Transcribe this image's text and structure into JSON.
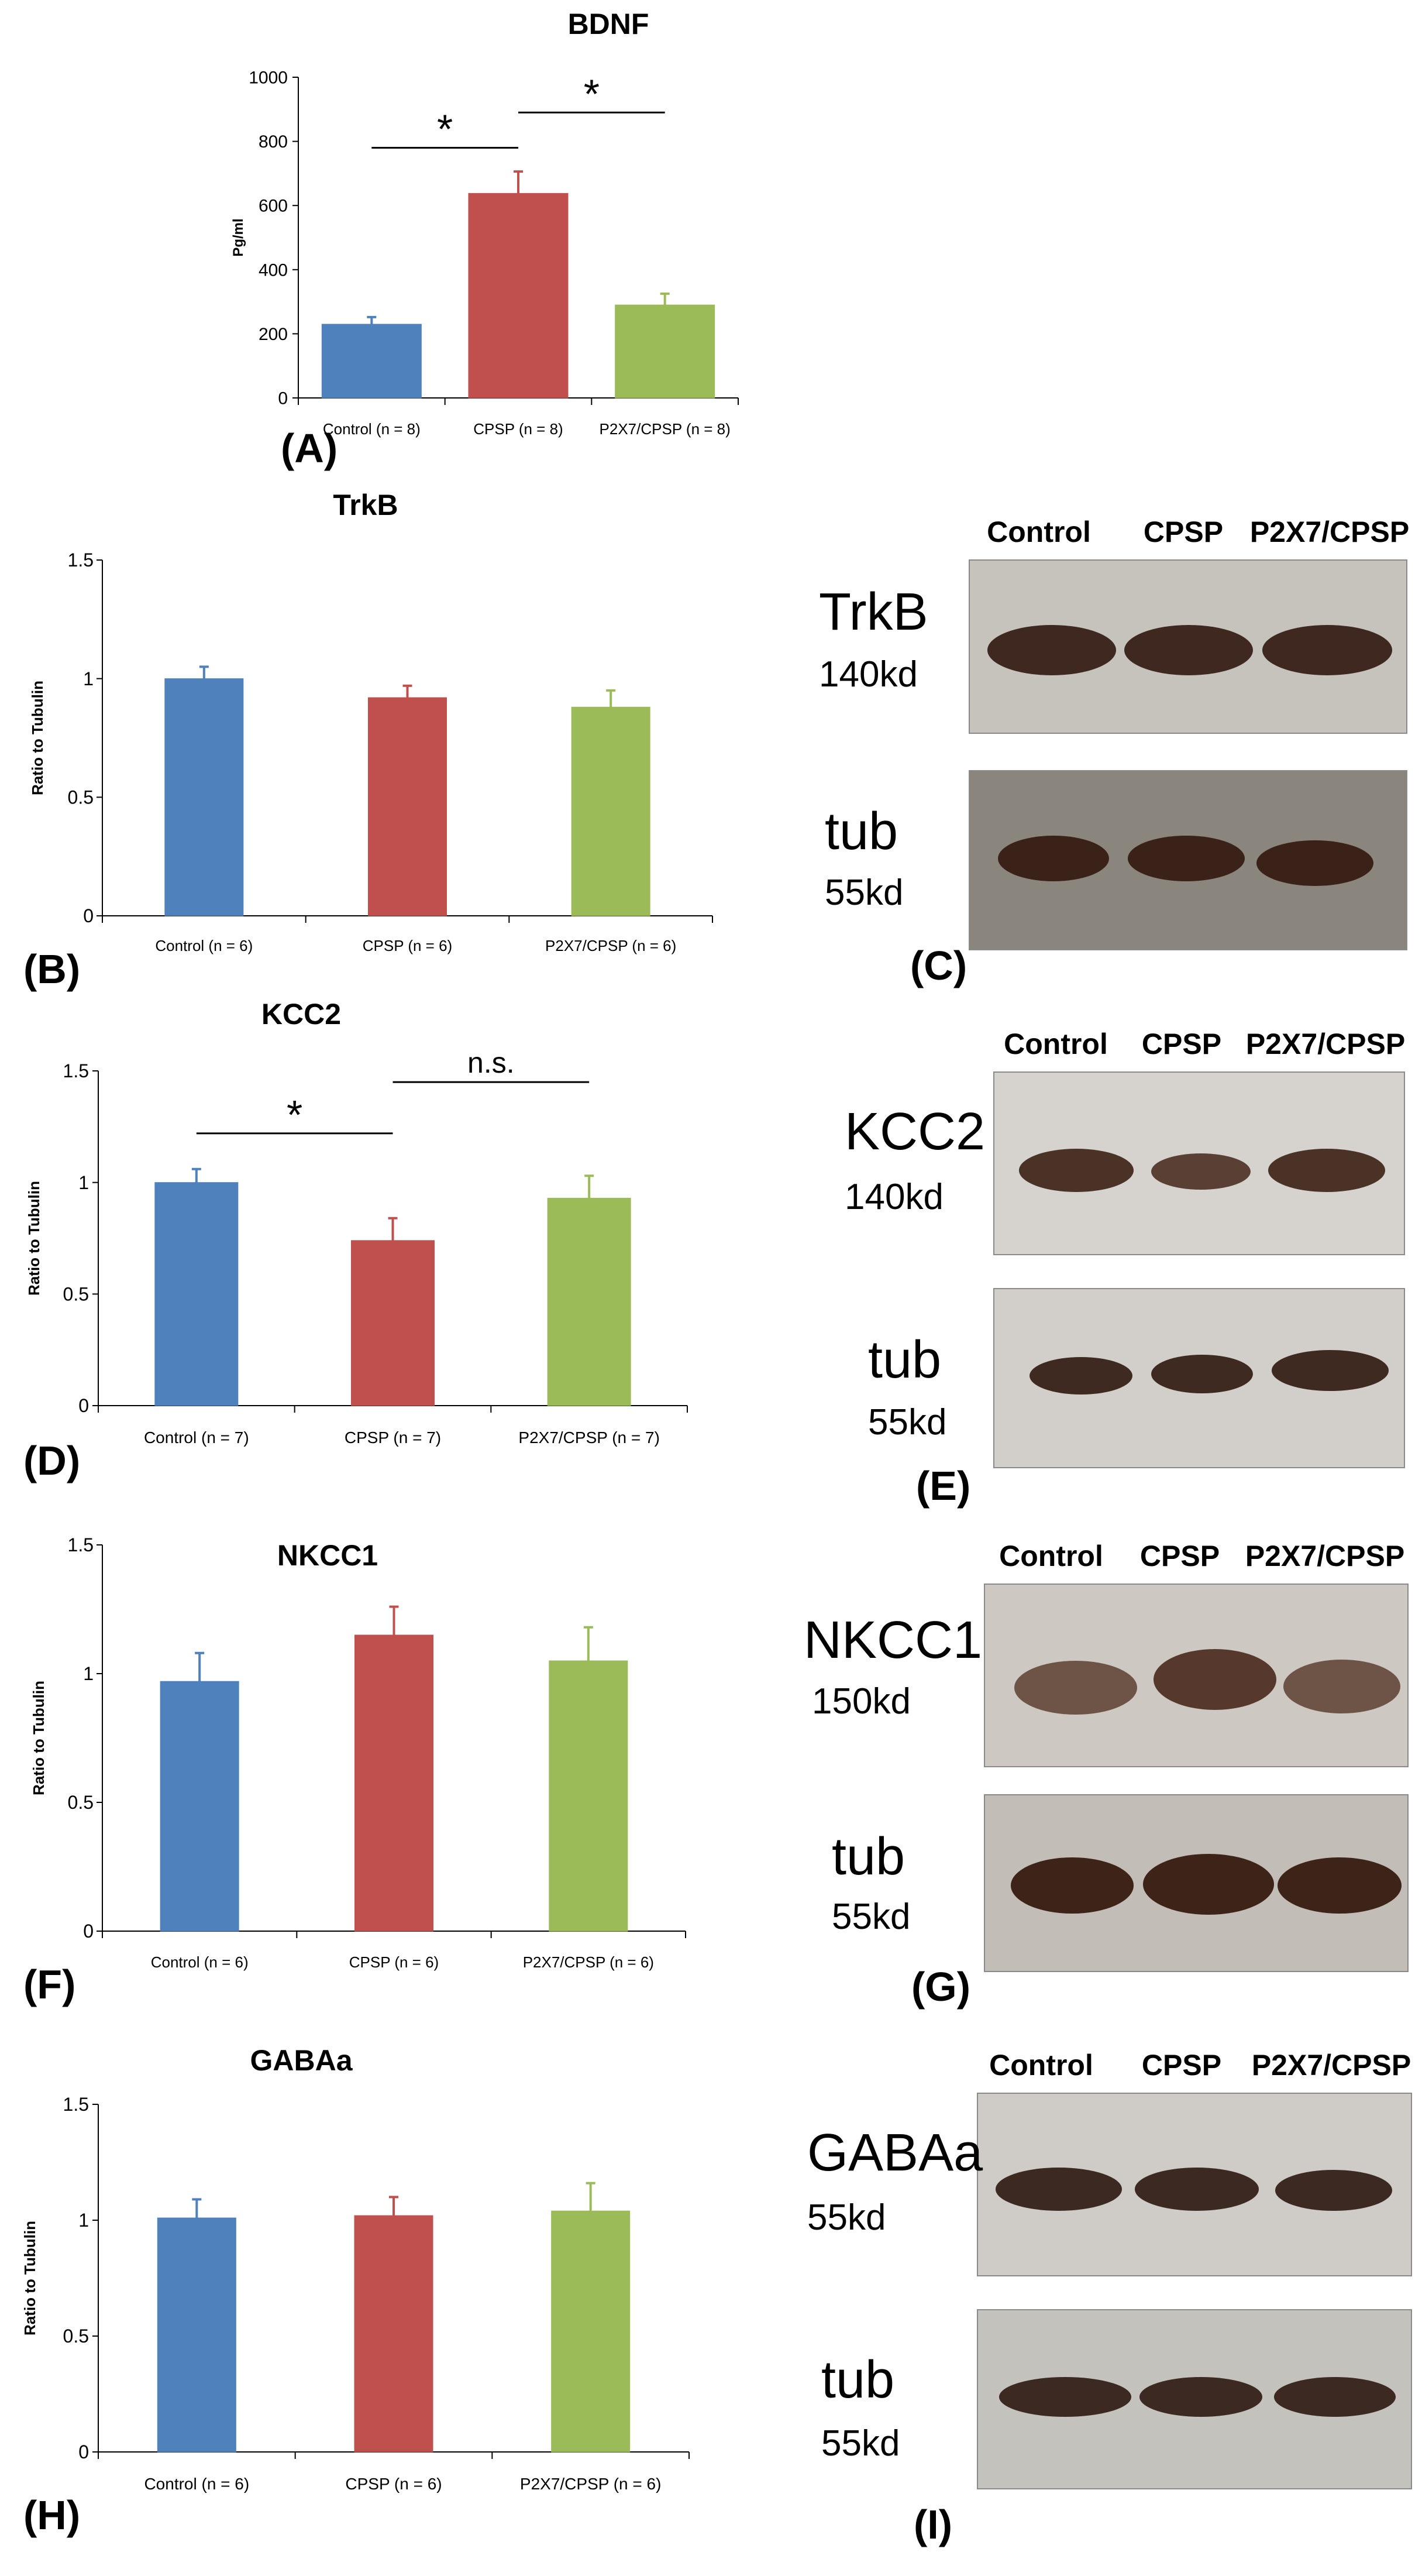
{
  "chart_data": [
    {
      "panel": "(A)",
      "type": "bar",
      "title": "BDNF",
      "ylabel": "Pg/ml",
      "categories": [
        "Control (n = 8)",
        "CPSP (n = 8)",
        "P2X7/CPSP (n = 8)"
      ],
      "values": [
        230,
        638,
        290
      ],
      "errors": [
        22,
        68,
        35
      ],
      "ylim": [
        0,
        1000
      ],
      "yticks": [
        0,
        200,
        400,
        600,
        800,
        1000
      ],
      "colors": [
        "#4f81bd",
        "#c0504d",
        "#9bbb59"
      ],
      "annotations": [
        {
          "from": 0,
          "to": 1,
          "label": "*",
          "y": 780
        },
        {
          "from": 1,
          "to": 2,
          "label": "*",
          "y": 890
        }
      ]
    },
    {
      "panel": "(B)",
      "type": "bar",
      "title": "TrkB",
      "ylabel": "Ratio to Tubulin",
      "categories": [
        "Control (n = 6)",
        "CPSP (n = 6)",
        "P2X7/CPSP (n = 6)"
      ],
      "values": [
        1.0,
        0.92,
        0.88
      ],
      "errors": [
        0.05,
        0.05,
        0.07
      ],
      "ylim": [
        0,
        1.5
      ],
      "yticks": [
        0,
        0.5,
        1,
        1.5
      ],
      "colors": [
        "#4f81bd",
        "#c0504d",
        "#9bbb59"
      ],
      "annotations": []
    },
    {
      "panel": "(D)",
      "type": "bar",
      "title": "KCC2",
      "ylabel": "Ratio to Tubulin",
      "categories": [
        "Control (n = 7)",
        "CPSP (n = 7)",
        "P2X7/CPSP (n = 7)"
      ],
      "values": [
        1.0,
        0.74,
        0.93
      ],
      "errors": [
        0.06,
        0.1,
        0.1
      ],
      "ylim": [
        0,
        1.5
      ],
      "yticks": [
        0,
        0.5,
        1,
        1.5
      ],
      "colors": [
        "#4f81bd",
        "#c0504d",
        "#9bbb59"
      ],
      "annotations": [
        {
          "from": 0,
          "to": 1,
          "label": "*",
          "y": 1.22
        },
        {
          "from": 1,
          "to": 2,
          "label": "n.s.",
          "y": 1.45
        }
      ]
    },
    {
      "panel": "(F)",
      "type": "bar",
      "title": "NKCC1",
      "ylabel": "Ratio to Tubulin",
      "categories": [
        "Control (n = 6)",
        "CPSP (n = 6)",
        "P2X7/CPSP (n = 6)"
      ],
      "values": [
        0.97,
        1.15,
        1.05
      ],
      "errors": [
        0.11,
        0.11,
        0.13
      ],
      "ylim": [
        0,
        1.5
      ],
      "yticks": [
        0,
        0.5,
        1,
        1.5
      ],
      "colors": [
        "#4f81bd",
        "#c0504d",
        "#9bbb59"
      ],
      "annotations": []
    },
    {
      "panel": "(H)",
      "type": "bar",
      "title": "GABAa",
      "ylabel": "Ratio to Tubulin",
      "categories": [
        "Control (n = 6)",
        "CPSP (n = 6)",
        "P2X7/CPSP (n = 6)"
      ],
      "values": [
        1.01,
        1.02,
        1.04
      ],
      "errors": [
        0.08,
        0.08,
        0.12
      ],
      "ylim": [
        0,
        1.5
      ],
      "yticks": [
        0,
        0.5,
        1,
        1.5
      ],
      "colors": [
        "#4f81bd",
        "#c0504d",
        "#9bbb59"
      ],
      "annotations": []
    }
  ],
  "blots": {
    "c": {
      "panel": "(C)",
      "lanes": [
        "Control",
        "CPSP",
        "P2X7/CPSP"
      ],
      "protein": "TrkB",
      "protein_kd": "140kd",
      "loading": "tub",
      "loading_kd": "55kd"
    },
    "e": {
      "panel": "(E)",
      "lanes": [
        "Control",
        "CPSP",
        "P2X7/CPSP"
      ],
      "protein": "KCC2",
      "protein_kd": "140kd",
      "loading": "tub",
      "loading_kd": "55kd"
    },
    "g": {
      "panel": "(G)",
      "lanes": [
        "Control",
        "CPSP",
        "P2X7/CPSP"
      ],
      "protein": "NKCC1",
      "protein_kd": "150kd",
      "loading": "tub",
      "loading_kd": "55kd"
    },
    "i": {
      "panel": "(I)",
      "lanes": [
        "Control",
        "CPSP",
        "P2X7/CPSP"
      ],
      "protein": "GABAa",
      "protein_kd": "55kd",
      "loading": "tub",
      "loading_kd": "55kd"
    }
  }
}
